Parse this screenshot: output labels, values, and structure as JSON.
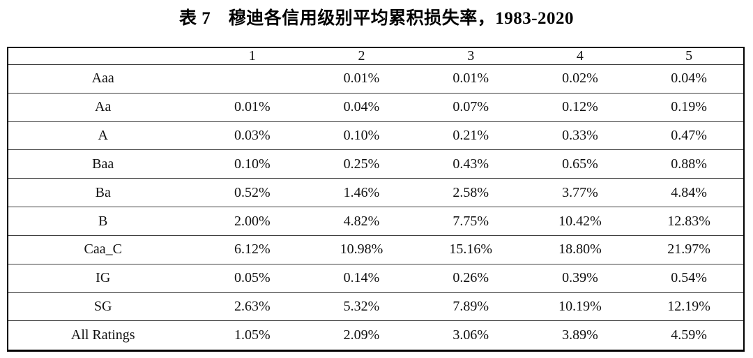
{
  "title": "表 7　穆迪各信用级别平均累积损失率，1983-2020",
  "chart_data": {
    "type": "table",
    "title": "表 7　穆迪各信用级别平均累积损失率，1983-2020",
    "columns": [
      "",
      "1",
      "2",
      "3",
      "4",
      "5"
    ],
    "rows": [
      {
        "label": "Aaa",
        "values": [
          "",
          "0.01%",
          "0.01%",
          "0.02%",
          "0.04%"
        ]
      },
      {
        "label": "Aa",
        "values": [
          "0.01%",
          "0.04%",
          "0.07%",
          "0.12%",
          "0.19%"
        ]
      },
      {
        "label": "A",
        "values": [
          "0.03%",
          "0.10%",
          "0.21%",
          "0.33%",
          "0.47%"
        ]
      },
      {
        "label": "Baa",
        "values": [
          "0.10%",
          "0.25%",
          "0.43%",
          "0.65%",
          "0.88%"
        ]
      },
      {
        "label": "Ba",
        "values": [
          "0.52%",
          "1.46%",
          "2.58%",
          "3.77%",
          "4.84%"
        ]
      },
      {
        "label": "B",
        "values": [
          "2.00%",
          "4.82%",
          "7.75%",
          "10.42%",
          "12.83%"
        ]
      },
      {
        "label": "Caa_C",
        "values": [
          "6.12%",
          "10.98%",
          "15.16%",
          "18.80%",
          "21.97%"
        ]
      },
      {
        "label": "IG",
        "values": [
          "0.05%",
          "0.14%",
          "0.26%",
          "0.39%",
          "0.54%"
        ]
      },
      {
        "label": "SG",
        "values": [
          "2.63%",
          "5.32%",
          "7.89%",
          "10.19%",
          "12.19%"
        ]
      },
      {
        "label": "All Ratings",
        "values": [
          "1.05%",
          "2.09%",
          "3.06%",
          "3.89%",
          "4.59%"
        ]
      }
    ],
    "layout": {
      "grid": "horizontal-rules-only",
      "legend": "none"
    }
  },
  "colors": {
    "background": "#ffffff",
    "outer_border": "#000000",
    "row_rule": "#3f3f3f",
    "text": "#111111"
  }
}
